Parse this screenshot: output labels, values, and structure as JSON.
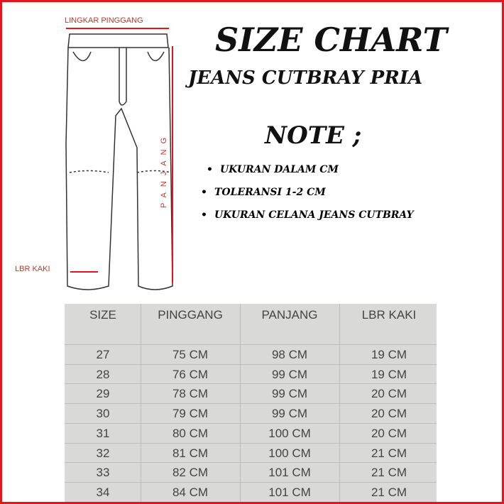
{
  "diagram": {
    "labels": {
      "waist": "LINGKAR PINGGANG",
      "length": "PANJANG",
      "leg": "LBR KAKI"
    }
  },
  "header": {
    "title": "SIZE CHART",
    "subtitle": "JEANS CUTBRAY PRIA",
    "note_title": "NOTE ;",
    "notes": [
      "UKURAN DALAM CM",
      "TOLERANSI 1-2 CM",
      "UKURAN CELANA JEANS CUTBRAY"
    ]
  },
  "table": {
    "columns": [
      "SIZE",
      "PINGGANG",
      "PANJANG",
      "LBR KAKI"
    ],
    "rows": [
      [
        "27",
        "75 CM",
        "98 CM",
        "19 CM"
      ],
      [
        "28",
        "76 CM",
        "99 CM",
        "19 CM"
      ],
      [
        "29",
        "78 CM",
        "99 CM",
        "20 CM"
      ],
      [
        "30",
        "79 CM",
        "99 CM",
        "20 CM"
      ],
      [
        "31",
        "80 CM",
        "100 CM",
        "20 CM"
      ],
      [
        "32",
        "81 CM",
        "100 CM",
        "21 CM"
      ],
      [
        "33",
        "82 CM",
        "101 CM",
        "21 CM"
      ],
      [
        "34",
        "84 CM",
        "101 CM",
        "21 CM"
      ]
    ]
  }
}
